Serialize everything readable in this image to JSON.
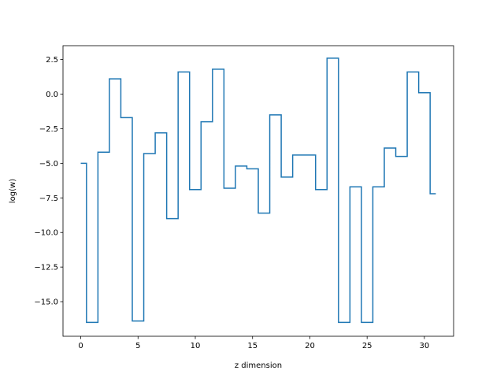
{
  "chart_data": {
    "type": "line",
    "drawstyle": "steps-mid",
    "title": "",
    "xlabel": "z dimension",
    "ylabel": "log(w)",
    "xlim": [
      -1.55,
      32.55
    ],
    "ylim": [
      -17.5,
      3.5
    ],
    "xticks": [
      0,
      5,
      10,
      15,
      20,
      25,
      30
    ],
    "xtick_labels": [
      "0",
      "5",
      "10",
      "15",
      "20",
      "25",
      "30"
    ],
    "yticks": [
      2.5,
      0.0,
      -2.5,
      -5.0,
      -7.5,
      -10.0,
      -12.5,
      -15.0
    ],
    "ytick_labels": [
      "2.5",
      "0.0",
      "−2.5",
      "−5.0",
      "−7.5",
      "−10.0",
      "−12.5",
      "−15.0"
    ],
    "grid": false,
    "series": [
      {
        "color": "#1f77b4",
        "x": [
          0,
          1,
          2,
          3,
          4,
          5,
          6,
          7,
          8,
          9,
          10,
          11,
          12,
          13,
          14,
          15,
          16,
          17,
          18,
          19,
          20,
          21,
          22,
          23,
          24,
          25,
          26,
          27,
          28,
          29,
          30,
          31
        ],
        "y": [
          -5.0,
          -16.5,
          -4.2,
          1.1,
          -1.7,
          -16.4,
          -4.3,
          -2.8,
          -9.0,
          1.6,
          -6.9,
          -2.0,
          1.8,
          -6.8,
          -5.2,
          -5.4,
          -8.6,
          -1.5,
          -6.0,
          -4.4,
          -4.4,
          -6.9,
          2.6,
          -16.5,
          -6.7,
          -16.5,
          -6.7,
          -3.9,
          -4.5,
          1.6,
          0.1,
          -7.2
        ]
      }
    ]
  }
}
